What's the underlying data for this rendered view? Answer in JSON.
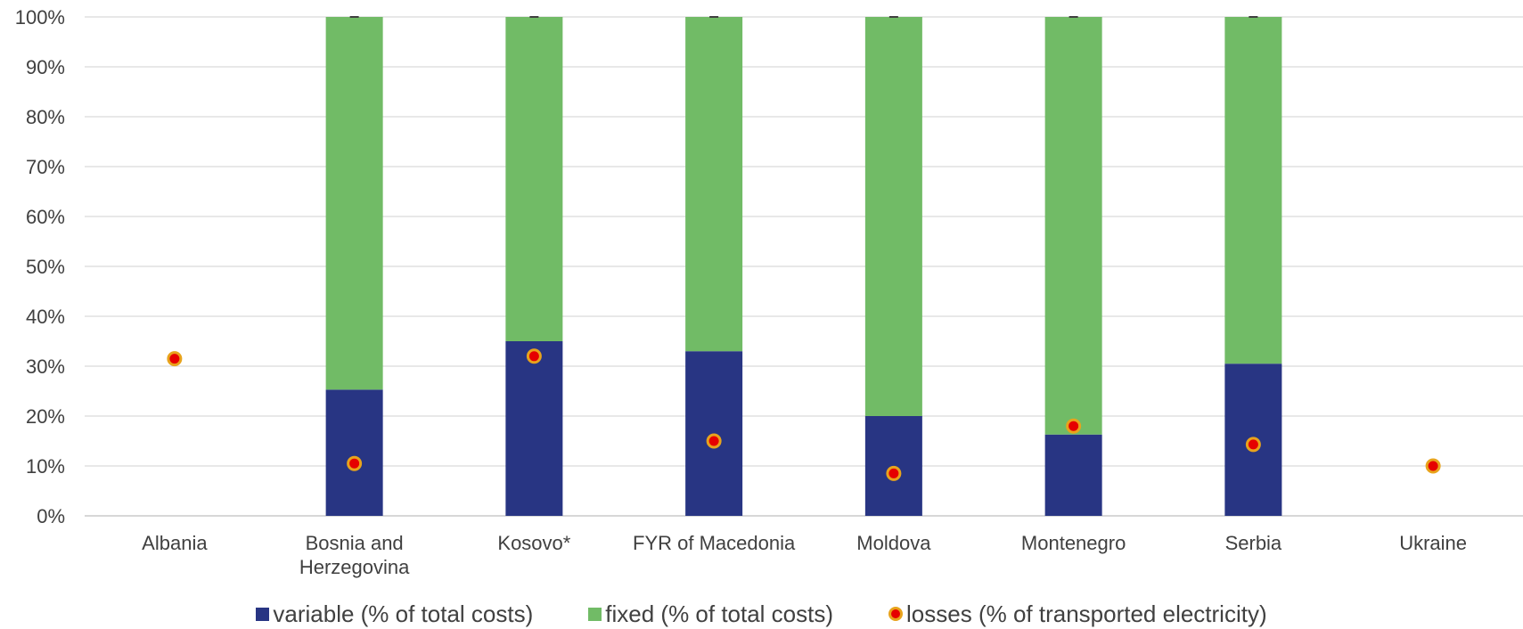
{
  "chart_data": {
    "type": "bar",
    "stacked": true,
    "categories": [
      "Albania",
      "Bosnia and Herzegovina",
      "Kosovo*",
      "FYR of Macedonia",
      "Moldova",
      "Montenegro",
      "Serbia",
      "Ukraine"
    ],
    "series": [
      {
        "name": "variable (% of total costs)",
        "kind": "bar",
        "color": "#283583",
        "values": [
          null,
          25.3,
          35.0,
          33.0,
          20.0,
          16.3,
          30.5,
          null
        ]
      },
      {
        "name": "fixed (% of total costs)",
        "kind": "bar",
        "color": "#71BB66",
        "values": [
          null,
          74.7,
          65.0,
          67.0,
          80.0,
          83.7,
          69.5,
          null
        ]
      },
      {
        "name": "losses (% of transported electricity)",
        "kind": "scatter",
        "color": "#E60000",
        "edge_color": "#E8A31C",
        "values": [
          31.5,
          10.5,
          32.0,
          15.0,
          8.5,
          18.0,
          14.3,
          10.0
        ]
      }
    ],
    "yticks": [
      "0%",
      "10%",
      "20%",
      "30%",
      "40%",
      "50%",
      "60%",
      "70%",
      "80%",
      "90%",
      "100%"
    ],
    "ylim": [
      0,
      100
    ],
    "grid": true,
    "legend_position": "bottom",
    "title": "",
    "xlabel": "",
    "ylabel": ""
  }
}
